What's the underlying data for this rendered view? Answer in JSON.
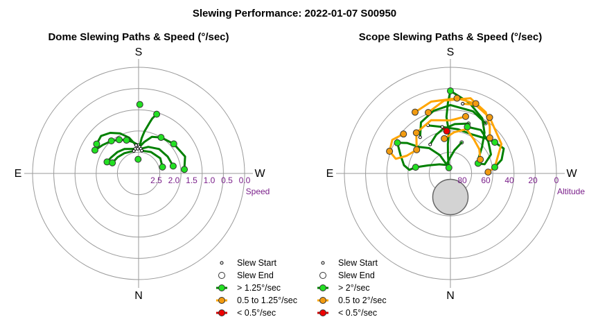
{
  "title": "Slewing Performance: 2022-01-07 S00950",
  "colors": {
    "ring": "#9a9a9a",
    "fast": "#008000",
    "fast_marker": "#22e022",
    "medium": "#ffa500",
    "medium_marker": "#f29b10",
    "slow": "#cc0000",
    "slow_marker": "#ee0000",
    "tick_text": "#7a1f8a",
    "blocked_zone": "#d3d3d3"
  },
  "chart_data": [
    {
      "type": "scatter",
      "subtitle": "Dome Slewing Paths & Speed (°/sec)",
      "projection": "polar",
      "directions": {
        "top": "S",
        "left": "E",
        "right": "W",
        "bottom": "N"
      },
      "radial_axis_label": "Speed",
      "radial_ticks": [
        "2.5",
        "2.0",
        "1.5",
        "1.0",
        "0.5",
        "0.0"
      ],
      "radial_tick_values": [
        2.5,
        2.0,
        1.5,
        1.0,
        0.5,
        0.0
      ],
      "radial_range": [
        3.0,
        0.0
      ],
      "legend": [
        {
          "label": "Slew Start",
          "kind": "start"
        },
        {
          "label": "Slew End",
          "kind": "end"
        },
        {
          "label": "> 1.25°/sec",
          "kind": "fast"
        },
        {
          "label": "0.5 to 1.25°/sec",
          "kind": "medium"
        },
        {
          "label": "< 0.5°/sec",
          "kind": "slow"
        }
      ],
      "series": [
        {
          "class": "fast",
          "points": [
            [
              178,
              2.3
            ],
            [
              190,
              2.1
            ],
            [
              200,
              1.9
            ],
            [
              212,
              1.8
            ],
            [
              230,
              1.7
            ],
            [
              250,
              1.6
            ],
            [
              265,
              1.7
            ]
          ]
        },
        {
          "class": "fast",
          "points": [
            [
              180,
              2.2
            ],
            [
              170,
              2.1
            ],
            [
              160,
              2.0
            ],
            [
              150,
              1.9
            ],
            [
              140,
              1.8
            ],
            [
              128,
              1.7
            ],
            [
              118,
              1.6
            ]
          ]
        },
        {
          "class": "fast",
          "points": [
            [
              182,
              2.25
            ],
            [
              185,
              2.0
            ],
            [
              188,
              1.8
            ],
            [
              192,
              1.55
            ],
            [
              194,
              1.4
            ],
            [
              197,
              1.25
            ]
          ]
        },
        {
          "class": "fast",
          "points": [
            [
              175,
              2.2
            ],
            [
              165,
              1.95
            ],
            [
              155,
              1.75
            ],
            [
              145,
              1.6
            ],
            [
              135,
              1.5
            ],
            [
              125,
              1.55
            ]
          ]
        },
        {
          "class": "fast",
          "points": [
            [
              185,
              2.3
            ],
            [
              200,
              2.2
            ],
            [
              220,
              2.1
            ],
            [
              240,
              2.05
            ],
            [
              258,
              2.0
            ]
          ]
        },
        {
          "class": "fast",
          "points": [
            [
              172,
              2.3
            ],
            [
              150,
              2.2
            ],
            [
              135,
              2.15
            ],
            [
              120,
              2.1
            ],
            [
              110,
              2.05
            ]
          ]
        },
        {
          "class": "fast",
          "points": [
            [
              188,
              2.35
            ],
            [
              210,
              2.3
            ],
            [
              235,
              2.25
            ],
            [
              255,
              2.3
            ]
          ]
        },
        {
          "class": "fast",
          "points": [
            [
              168,
              2.35
            ],
            [
              145,
              2.3
            ],
            [
              128,
              2.25
            ],
            [
              112,
              2.2
            ]
          ]
        }
      ],
      "markers": [
        {
          "class": "fast",
          "az": 181,
          "speed": 1.05
        },
        {
          "class": "fast",
          "az": 197,
          "speed": 1.25
        },
        {
          "class": "fast",
          "az": 125,
          "speed": 1.55
        },
        {
          "class": "fast",
          "az": 118,
          "speed": 1.6
        },
        {
          "class": "fast",
          "az": 265,
          "speed": 1.7
        },
        {
          "class": "fast",
          "az": 258,
          "speed": 2.0
        },
        {
          "class": "fast",
          "az": 110,
          "speed": 2.05
        },
        {
          "class": "fast",
          "az": 112,
          "speed": 2.2
        },
        {
          "class": "fast",
          "az": 255,
          "speed": 2.3
        },
        {
          "class": "fast",
          "az": 150,
          "speed": 1.9
        },
        {
          "class": "fast",
          "az": 140,
          "speed": 1.8
        },
        {
          "class": "fast",
          "az": 230,
          "speed": 1.7
        },
        {
          "class": "fast",
          "az": 212,
          "speed": 1.8
        },
        {
          "class": "fast",
          "az": 160,
          "speed": 2.0
        },
        {
          "class": "fast",
          "az": 178,
          "speed": 2.6
        }
      ]
    },
    {
      "type": "scatter",
      "subtitle": "Scope Slewing Paths & Speed (°/sec)",
      "projection": "polar",
      "directions": {
        "top": "S",
        "left": "E",
        "right": "W",
        "bottom": "N"
      },
      "radial_axis_label": "Altitude",
      "radial_ticks": [
        "80",
        "60",
        "40",
        "20",
        "0"
      ],
      "radial_tick_values": [
        80,
        60,
        40,
        20,
        0
      ],
      "radial_range": [
        90,
        0
      ],
      "blocked_zone": {
        "center_az": 0,
        "center_alt": 70,
        "radius_alt": 15
      },
      "legend": [
        {
          "label": "Slew Start",
          "kind": "start"
        },
        {
          "label": "Slew End",
          "kind": "end"
        },
        {
          "label": "> 2°/sec",
          "kind": "fast"
        },
        {
          "label": "0.5 to 2°/sec",
          "kind": "medium"
        },
        {
          "label": "< 0.5°/sec",
          "kind": "slow"
        }
      ],
      "series": [
        {
          "class": "fast",
          "points": [
            [
              180,
              20
            ],
            [
              178,
              30
            ],
            [
              176,
              42
            ],
            [
              178,
              55
            ],
            [
              175,
              65
            ],
            [
              172,
              75
            ],
            [
              165,
              85
            ]
          ]
        },
        {
          "class": "fast",
          "points": [
            [
              165,
              85
            ],
            [
              150,
              72
            ],
            [
              140,
              62
            ],
            [
              130,
              55
            ],
            [
              125,
              45
            ],
            [
              120,
              38
            ]
          ]
        },
        {
          "class": "fast",
          "points": [
            [
              180,
              20
            ],
            [
              195,
              28
            ],
            [
              210,
              36
            ],
            [
              220,
              45
            ],
            [
              230,
              55
            ],
            [
              240,
              62
            ],
            [
              250,
              65
            ]
          ]
        },
        {
          "class": "fast",
          "points": [
            [
              120,
              38
            ],
            [
              110,
              45
            ],
            [
              100,
              50
            ],
            [
              95,
              55
            ],
            [
              100,
              60
            ]
          ]
        },
        {
          "class": "fast",
          "points": [
            [
              250,
              65
            ],
            [
              255,
              60
            ],
            [
              245,
              52
            ],
            [
              230,
              48
            ],
            [
              215,
              45
            ],
            [
              200,
              48
            ]
          ]
        },
        {
          "class": "fast",
          "points": [
            [
              155,
              45
            ],
            [
              170,
              50
            ],
            [
              190,
              52
            ],
            [
              210,
              52
            ],
            [
              225,
              48
            ],
            [
              235,
              44
            ]
          ]
        },
        {
          "class": "fast",
          "points": [
            [
              140,
              50
            ],
            [
              150,
              40
            ],
            [
              165,
              35
            ],
            [
              180,
              32
            ],
            [
              200,
              34
            ],
            [
              215,
              38
            ]
          ]
        },
        {
          "class": "fast",
          "points": [
            [
              100,
              60
            ],
            [
              110,
              70
            ],
            [
              130,
              78
            ],
            [
              155,
              82
            ],
            [
              175,
              78
            ],
            [
              190,
              70
            ],
            [
              200,
              62
            ]
          ]
        },
        {
          "class": "fast",
          "points": [
            [
              235,
              44
            ],
            [
              245,
              40
            ],
            [
              255,
              45
            ],
            [
              262,
              52
            ]
          ]
        },
        {
          "class": "fast",
          "points": [
            [
              145,
              60
            ],
            [
              160,
              55
            ],
            [
              170,
              52
            ],
            [
              185,
              48
            ],
            [
              200,
              45
            ]
          ]
        },
        {
          "class": "medium",
          "points": [
            [
              160,
              35
            ],
            [
              175,
              28
            ],
            [
              195,
              24
            ],
            [
              210,
              30
            ],
            [
              220,
              38
            ],
            [
              228,
              45
            ]
          ]
        },
        {
          "class": "medium",
          "points": [
            [
              130,
              38
            ],
            [
              120,
              33
            ],
            [
              110,
              35
            ],
            [
              105,
              42
            ],
            [
              112,
              50
            ],
            [
              125,
              55
            ]
          ]
        },
        {
          "class": "medium",
          "points": [
            [
              190,
              30
            ],
            [
              200,
              28
            ],
            [
              215,
              32
            ],
            [
              240,
              40
            ],
            [
              262,
              52
            ],
            [
              268,
              58
            ]
          ]
        },
        {
          "class": "medium",
          "points": [
            [
              125,
              55
            ],
            [
              140,
              45
            ],
            [
              160,
              42
            ],
            [
              180,
              45
            ],
            [
              195,
              40
            ]
          ]
        },
        {
          "class": "medium",
          "points": [
            [
              245,
              62
            ],
            [
              230,
              58
            ],
            [
              215,
              55
            ],
            [
              200,
              50
            ],
            [
              185,
              55
            ],
            [
              170,
              60
            ]
          ]
        },
        {
          "class": "medium",
          "points": [
            [
              150,
              30
            ],
            [
              165,
              27
            ],
            [
              185,
              26
            ],
            [
              200,
              27
            ]
          ]
        },
        {
          "class": "slow",
          "points": [
            [
              170,
              50
            ],
            [
              172,
              52
            ],
            [
              175,
              54
            ]
          ]
        }
      ],
      "markers": [
        {
          "class": "fast",
          "az": 180,
          "alt": 20
        },
        {
          "class": "fast",
          "az": 165,
          "alt": 85
        },
        {
          "class": "fast",
          "az": 250,
          "alt": 65
        },
        {
          "class": "fast",
          "az": 120,
          "alt": 38
        },
        {
          "class": "fast",
          "az": 200,
          "alt": 48
        },
        {
          "class": "fast",
          "az": 235,
          "alt": 44
        },
        {
          "class": "fast",
          "az": 100,
          "alt": 60
        },
        {
          "class": "fast",
          "az": 262,
          "alt": 52
        },
        {
          "class": "medium",
          "az": 160,
          "alt": 35
        },
        {
          "class": "medium",
          "az": 228,
          "alt": 45
        },
        {
          "class": "medium",
          "az": 130,
          "alt": 38
        },
        {
          "class": "medium",
          "az": 125,
          "alt": 55
        },
        {
          "class": "medium",
          "az": 268,
          "alt": 58
        },
        {
          "class": "medium",
          "az": 195,
          "alt": 40
        },
        {
          "class": "medium",
          "az": 245,
          "alt": 62
        },
        {
          "class": "medium",
          "az": 170,
          "alt": 60
        },
        {
          "class": "medium",
          "az": 150,
          "alt": 30
        },
        {
          "class": "medium",
          "az": 200,
          "alt": 27
        },
        {
          "class": "medium",
          "az": 110,
          "alt": 35
        },
        {
          "class": "medium",
          "az": 215,
          "alt": 32
        },
        {
          "class": "medium",
          "az": 185,
          "alt": 26
        },
        {
          "class": "medium",
          "az": 140,
          "alt": 45
        },
        {
          "class": "slow",
          "az": 175,
          "alt": 54
        }
      ]
    }
  ]
}
